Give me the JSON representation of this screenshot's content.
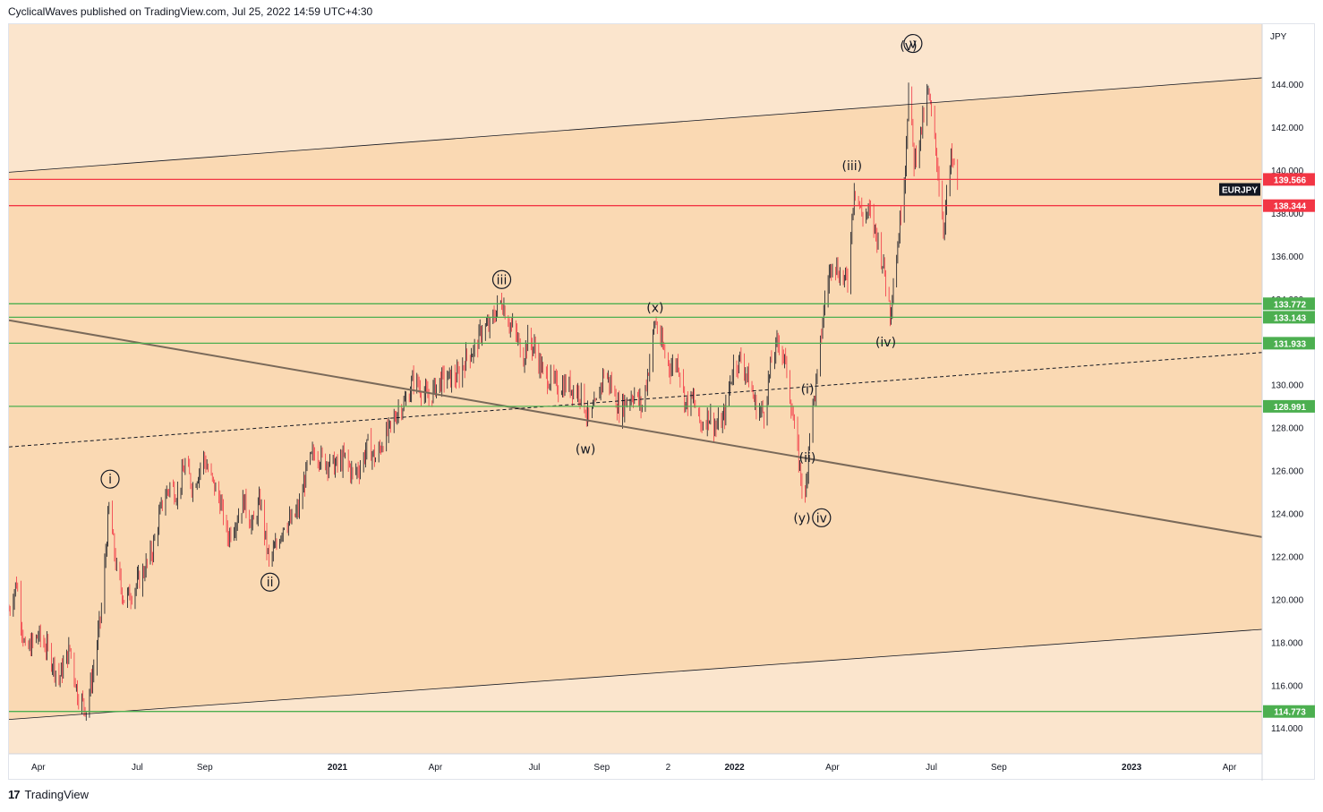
{
  "header": {
    "published": "CyclicalWaves published on TradingView.com, Jul 25, 2022 14:59 UTC+4:30"
  },
  "footer": {
    "brand": "TradingView",
    "logo": "17"
  },
  "colors": {
    "bg_light": "#fbe5cd",
    "bg_channel": "#fad9b3",
    "red_level": "#f23645",
    "green_level": "#4caf50",
    "up_candle": "#131722",
    "down_candle": "#f23645",
    "symbol_tag": "#131722",
    "trendline_brown": "#7a6a5a"
  },
  "chart_data": {
    "type": "candlestick",
    "symbol": "EURJPY",
    "unit": "JPY",
    "ylim": [
      112.8,
      146.8
    ],
    "y_ticks": [
      114,
      116,
      118,
      120,
      122,
      124,
      126,
      128,
      130,
      132,
      134,
      136,
      138,
      140,
      142,
      144
    ],
    "y_tick_labels": [
      "114.000",
      "116.000",
      "118.000",
      "120.000",
      "122.000",
      "124.000",
      "126.000",
      "128.000",
      "130.000",
      "132.000",
      "134.000",
      "136.000",
      "138.000",
      "140.000",
      "142.000",
      "144.000"
    ],
    "x_labels": [
      {
        "date": "2020-04-01",
        "label": "Apr",
        "bold": false
      },
      {
        "date": "2020-07-01",
        "label": "Jul",
        "bold": false
      },
      {
        "date": "2020-09-01",
        "label": "Sep",
        "bold": false
      },
      {
        "date": "2021-01-01",
        "label": "2021",
        "bold": true
      },
      {
        "date": "2021-04-01",
        "label": "Apr",
        "bold": false
      },
      {
        "date": "2021-07-01",
        "label": "Jul",
        "bold": false
      },
      {
        "date": "2021-09-01",
        "label": "Sep",
        "bold": false
      },
      {
        "date": "2021-11-01",
        "label": "2",
        "bold": false
      },
      {
        "date": "2022-01-01",
        "label": "2022",
        "bold": true
      },
      {
        "date": "2022-04-01",
        "label": "Apr",
        "bold": false
      },
      {
        "date": "2022-07-01",
        "label": "Jul",
        "bold": false
      },
      {
        "date": "2022-09-01",
        "label": "Sep",
        "bold": false
      },
      {
        "date": "2023-01-01",
        "label": "2023",
        "bold": true
      },
      {
        "date": "2023-04-01",
        "label": "Apr",
        "bold": false
      }
    ],
    "x_start": "2020-03-05",
    "x_end": "2023-05-01",
    "price_path": [
      [
        "2020-03-05",
        119.5
      ],
      [
        "2020-03-12",
        120.8
      ],
      [
        "2020-03-20",
        117.5
      ],
      [
        "2020-04-01",
        118.3
      ],
      [
        "2020-04-10",
        117.6
      ],
      [
        "2020-04-20",
        116.3
      ],
      [
        "2020-04-30",
        117.7
      ],
      [
        "2020-05-07",
        115.6
      ],
      [
        "2020-05-15",
        114.9
      ],
      [
        "2020-05-22",
        116.8
      ],
      [
        "2020-05-29",
        119.5
      ],
      [
        "2020-06-05",
        124.3
      ],
      [
        "2020-06-12",
        121.3
      ],
      [
        "2020-06-19",
        120.0
      ],
      [
        "2020-06-26",
        120.3
      ],
      [
        "2020-07-06",
        121.2
      ],
      [
        "2020-07-15",
        122.3
      ],
      [
        "2020-07-24",
        124.5
      ],
      [
        "2020-07-31",
        125.3
      ],
      [
        "2020-08-07",
        124.9
      ],
      [
        "2020-08-14",
        126.3
      ],
      [
        "2020-08-21",
        125.2
      ],
      [
        "2020-08-31",
        126.6
      ],
      [
        "2020-09-07",
        125.6
      ],
      [
        "2020-09-15",
        124.6
      ],
      [
        "2020-09-22",
        122.9
      ],
      [
        "2020-09-30",
        123.7
      ],
      [
        "2020-10-07",
        124.6
      ],
      [
        "2020-10-15",
        123.4
      ],
      [
        "2020-10-22",
        124.6
      ],
      [
        "2020-10-30",
        121.7
      ],
      [
        "2020-11-06",
        122.5
      ],
      [
        "2020-11-13",
        123.6
      ],
      [
        "2020-11-20",
        123.6
      ],
      [
        "2020-11-27",
        124.3
      ],
      [
        "2020-12-04",
        126.1
      ],
      [
        "2020-12-11",
        126.9
      ],
      [
        "2020-12-18",
        126.5
      ],
      [
        "2020-12-31",
        126.2
      ],
      [
        "2021-01-08",
        126.6
      ],
      [
        "2021-01-15",
        125.8
      ],
      [
        "2021-01-22",
        126.2
      ],
      [
        "2021-01-29",
        127.2
      ],
      [
        "2021-02-05",
        126.5
      ],
      [
        "2021-02-12",
        127.4
      ],
      [
        "2021-02-19",
        128.0
      ],
      [
        "2021-02-26",
        128.9
      ],
      [
        "2021-03-05",
        129.2
      ],
      [
        "2021-03-12",
        130.3
      ],
      [
        "2021-03-19",
        129.8
      ],
      [
        "2021-03-26",
        129.3
      ],
      [
        "2021-04-02",
        130.0
      ],
      [
        "2021-04-09",
        130.3
      ],
      [
        "2021-04-16",
        130.3
      ],
      [
        "2021-04-23",
        130.4
      ],
      [
        "2021-04-30",
        131.4
      ],
      [
        "2021-05-07",
        131.6
      ],
      [
        "2021-05-14",
        132.6
      ],
      [
        "2021-05-21",
        132.7
      ],
      [
        "2021-05-28",
        133.6
      ],
      [
        "2021-06-01",
        133.9
      ],
      [
        "2021-06-07",
        133.0
      ],
      [
        "2021-06-14",
        132.3
      ],
      [
        "2021-06-21",
        131.3
      ],
      [
        "2021-06-25",
        132.1
      ],
      [
        "2021-07-02",
        131.6
      ],
      [
        "2021-07-09",
        130.5
      ],
      [
        "2021-07-16",
        130.2
      ],
      [
        "2021-07-23",
        129.9
      ],
      [
        "2021-07-30",
        130.0
      ],
      [
        "2021-08-06",
        129.8
      ],
      [
        "2021-08-13",
        129.6
      ],
      [
        "2021-08-20",
        128.3
      ],
      [
        "2021-08-27",
        129.1
      ],
      [
        "2021-09-03",
        130.6
      ],
      [
        "2021-09-10",
        129.9
      ],
      [
        "2021-09-17",
        128.8
      ],
      [
        "2021-09-24",
        129.3
      ],
      [
        "2021-10-01",
        129.6
      ],
      [
        "2021-10-08",
        128.9
      ],
      [
        "2021-10-15",
        131.1
      ],
      [
        "2021-10-20",
        133.0
      ],
      [
        "2021-10-27",
        131.7
      ],
      [
        "2021-11-03",
        130.8
      ],
      [
        "2021-11-10",
        131.1
      ],
      [
        "2021-11-17",
        129.1
      ],
      [
        "2021-11-24",
        129.3
      ],
      [
        "2021-12-01",
        128.1
      ],
      [
        "2021-12-08",
        128.6
      ],
      [
        "2021-12-15",
        128.0
      ],
      [
        "2021-12-22",
        128.4
      ],
      [
        "2021-12-31",
        130.9
      ],
      [
        "2022-01-07",
        131.2
      ],
      [
        "2022-01-14",
        130.2
      ],
      [
        "2022-01-21",
        128.9
      ],
      [
        "2022-01-28",
        128.7
      ],
      [
        "2022-02-04",
        131.1
      ],
      [
        "2022-02-11",
        132.1
      ],
      [
        "2022-02-18",
        130.7
      ],
      [
        "2022-02-25",
        127.9
      ],
      [
        "2022-03-04",
        125.4
      ],
      [
        "2022-03-07",
        124.5
      ],
      [
        "2022-03-11",
        128.0
      ],
      [
        "2022-03-18",
        130.3
      ],
      [
        "2022-03-25",
        134.0
      ],
      [
        "2022-04-01",
        135.9
      ],
      [
        "2022-04-08",
        135.1
      ],
      [
        "2022-04-15",
        134.8
      ],
      [
        "2022-04-21",
        139.3
      ],
      [
        "2022-04-28",
        137.9
      ],
      [
        "2022-05-05",
        138.0
      ],
      [
        "2022-05-12",
        136.9
      ],
      [
        "2022-05-18",
        135.5
      ],
      [
        "2022-05-24",
        133.4
      ],
      [
        "2022-05-31",
        136.5
      ],
      [
        "2022-06-07",
        140.3
      ],
      [
        "2022-06-10",
        143.8
      ],
      [
        "2022-06-15",
        140.4
      ],
      [
        "2022-06-21",
        141.7
      ],
      [
        "2022-06-28",
        143.6
      ],
      [
        "2022-07-05",
        141.0
      ],
      [
        "2022-07-12",
        137.3
      ],
      [
        "2022-07-19",
        140.5
      ],
      [
        "2022-07-25",
        139.6
      ]
    ],
    "horizontal_levels": [
      {
        "value": 139.566,
        "label": "139.566",
        "color": "red"
      },
      {
        "value": 138.344,
        "label": "138.344",
        "color": "red"
      },
      {
        "value": 133.772,
        "label": "133.772",
        "color": "green"
      },
      {
        "value": 133.143,
        "label": "133.143",
        "color": "green"
      },
      {
        "value": 131.933,
        "label": "131.933",
        "color": "green"
      },
      {
        "value": 128.991,
        "label": "128.991",
        "color": "green"
      },
      {
        "value": 114.773,
        "label": "114.773",
        "color": "green"
      }
    ],
    "channel_upper": [
      [
        "2020-03-05",
        139.9
      ],
      [
        "2023-05-01",
        144.3
      ]
    ],
    "channel_lower": [
      [
        "2020-03-05",
        114.4
      ],
      [
        "2023-05-01",
        118.6
      ]
    ],
    "descending_trendline": [
      [
        "2020-03-05",
        133.0
      ],
      [
        "2023-05-01",
        122.9
      ]
    ],
    "dashed_trendline": [
      [
        "2020-03-05",
        127.1
      ],
      [
        "2023-05-01",
        131.5
      ]
    ],
    "symbol_tag": {
      "label": "EURJPY",
      "value": 139.1
    },
    "wave_labels": [
      {
        "text": "i",
        "date": "2020-06-06",
        "value": 125.6,
        "circled": true
      },
      {
        "text": "ii",
        "date": "2020-10-31",
        "value": 120.8,
        "circled": true
      },
      {
        "text": "iii",
        "date": "2021-06-01",
        "value": 134.9,
        "circled": true
      },
      {
        "text": "(w)",
        "date": "2021-08-17",
        "value": 127.0,
        "circled": false
      },
      {
        "text": "(x)",
        "date": "2021-10-20",
        "value": 133.6,
        "circled": false
      },
      {
        "text": "(y)",
        "date": "2022-03-04",
        "value": 123.8,
        "circled": false
      },
      {
        "text": "iv",
        "date": "2022-03-22",
        "value": 123.8,
        "circled": true
      },
      {
        "text": "(i)",
        "date": "2022-03-09",
        "value": 129.8,
        "circled": false
      },
      {
        "text": "(ii)",
        "date": "2022-03-09",
        "value": 126.6,
        "circled": false
      },
      {
        "text": "(iii)",
        "date": "2022-04-19",
        "value": 140.2,
        "circled": false
      },
      {
        "text": "(iv)",
        "date": "2022-05-20",
        "value": 132.0,
        "circled": false
      },
      {
        "text": "(v)",
        "date": "2022-06-10",
        "value": 145.8,
        "circled": false
      },
      {
        "text": "v",
        "date": "2022-06-14",
        "value": 145.9,
        "circled": true
      }
    ]
  }
}
